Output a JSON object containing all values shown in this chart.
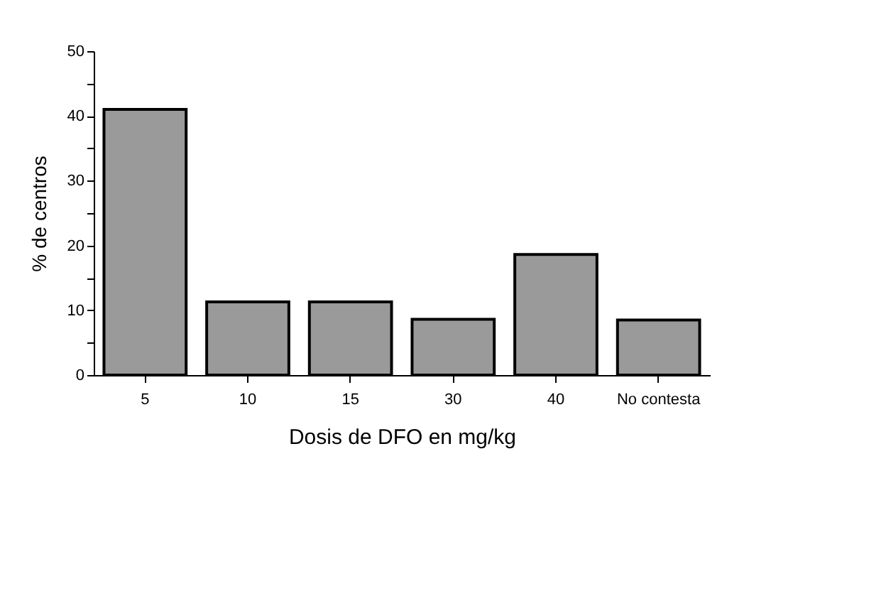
{
  "chart_data": {
    "type": "bar",
    "xlabel": "Dosis de DFO en mg/kg",
    "ylabel": "% de centros",
    "categories": [
      "5",
      "10",
      "15",
      "30",
      "40",
      "No contesta"
    ],
    "values": [
      41,
      11.3,
      11.3,
      8.6,
      18.6,
      8.5
    ],
    "color": "#9a9a9a",
    "ylim": [
      0,
      50
    ],
    "yticks": [
      0,
      {
        "value": 5,
        "label": null
      },
      10,
      {
        "value": 15,
        "label": null
      },
      20,
      {
        "value": 25,
        "label": null
      },
      30,
      {
        "value": 35,
        "label": null
      },
      40,
      {
        "value": 45,
        "label": null
      },
      50
    ],
    "grid": false
  }
}
